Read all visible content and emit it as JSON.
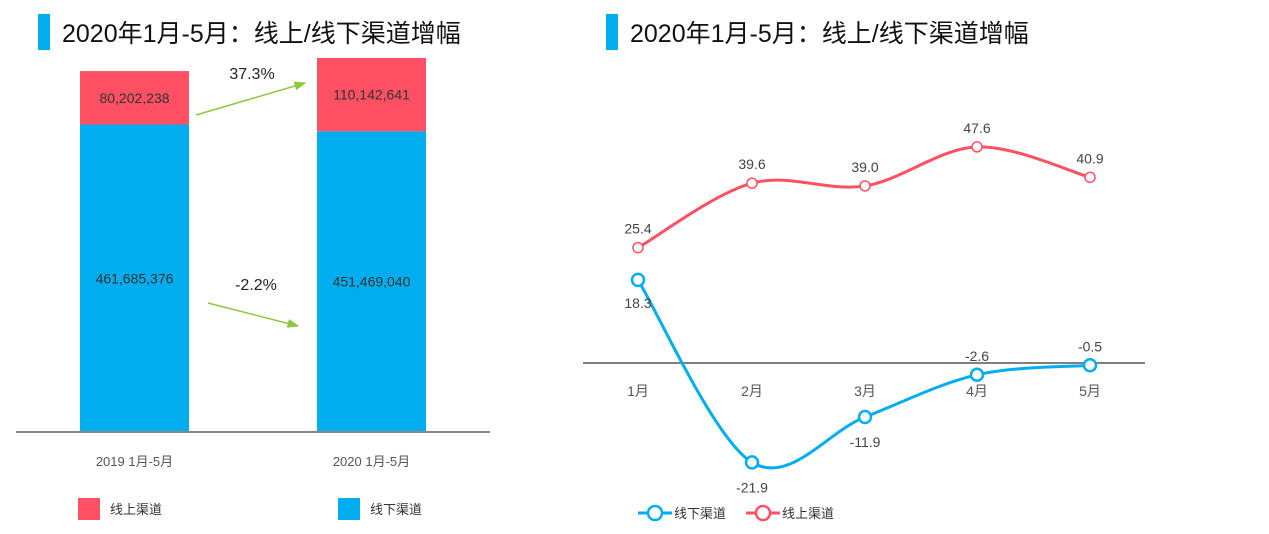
{
  "colors": {
    "online": "#ff5064",
    "offline": "#00aeef",
    "arrow": "#8dc63f",
    "axis": "#808080"
  },
  "chart_data": [
    {
      "type": "bar",
      "stacked": true,
      "title": "2020年1月-5月：线上/线下渠道增幅",
      "categories": [
        "2019 1月-5月",
        "2020 1月-5月"
      ],
      "series": [
        {
          "name": "线下渠道",
          "values": [
            461685376,
            451469040
          ],
          "labels": [
            "461,685,376",
            "451,469,040"
          ]
        },
        {
          "name": "线上渠道",
          "values": [
            80202238,
            110142641
          ],
          "labels": [
            "80,202,238",
            "110,142,641"
          ]
        }
      ],
      "annotations": {
        "online_growth": "37.3%",
        "offline_growth": "-2.2%"
      },
      "legend": {
        "placement": "bottom",
        "items": [
          "线上渠道",
          "线下渠道"
        ]
      },
      "grid": false
    },
    {
      "type": "line",
      "smooth": true,
      "title": "2020年1月-5月：线上/线下渠道增幅",
      "categories": [
        "1月",
        "2月",
        "3月",
        "4月",
        "5月"
      ],
      "series": [
        {
          "name": "线上渠道",
          "values": [
            25.4,
            39.6,
            39.0,
            47.6,
            40.9
          ],
          "labels": [
            "25.4",
            "39.6",
            "39.0",
            "47.6",
            "40.9"
          ]
        },
        {
          "name": "线下渠道",
          "values": [
            18.3,
            -21.9,
            -11.9,
            -2.6,
            -0.5
          ],
          "labels": [
            "18.3",
            "-21.9",
            "-11.9",
            "-2.6",
            "-0.5"
          ]
        }
      ],
      "legend": {
        "placement": "bottom-left",
        "items": [
          "线下渠道",
          "线上渠道"
        ]
      },
      "grid": false
    }
  ]
}
